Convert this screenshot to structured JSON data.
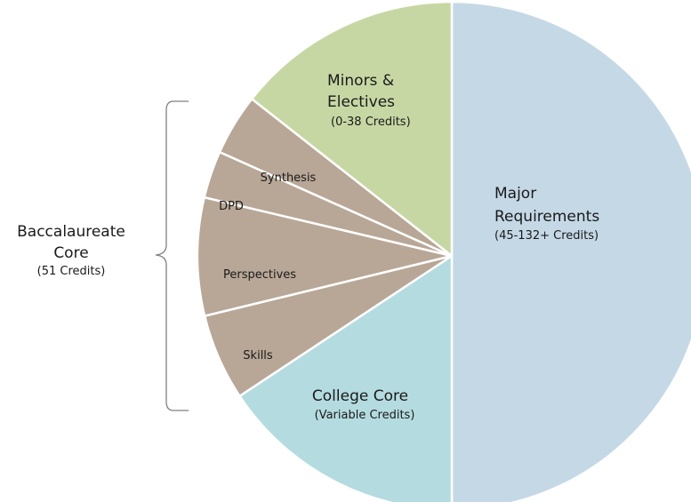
{
  "chart_data": {
    "type": "pie",
    "start_angle_deg": 0,
    "direction": "clockwise",
    "slices": [
      {
        "name": "Major Requirements",
        "sublabel": "(45-132+ Credits)",
        "value": 50.0,
        "color": "#c5d8e6"
      },
      {
        "name": "College Core",
        "sublabel": "(Variable Credits)",
        "value": 15.7,
        "color": "#b4dbe0"
      },
      {
        "name": "Skills",
        "sublabel": "",
        "value": 5.5,
        "color": "#b8a797"
      },
      {
        "name": "Perspectives",
        "sublabel": "",
        "value": 7.5,
        "color": "#b8a797"
      },
      {
        "name": "DPD",
        "sublabel": "",
        "value": 3.0,
        "color": "#b8a797"
      },
      {
        "name": "Synthesis",
        "sublabel": "",
        "value": 3.9,
        "color": "#b8a797"
      },
      {
        "name": "Minors & Electives",
        "sublabel": "(0-38 Credits)",
        "value": 14.4,
        "color": "#c7d7a4"
      }
    ],
    "group": {
      "label_line1": "Baccalaureate",
      "label_line2": "Core",
      "sublabel": "(51 Credits)",
      "members": [
        "Skills",
        "Perspectives",
        "DPD",
        "Synthesis"
      ]
    },
    "slice_border_color": "#ffffff"
  }
}
